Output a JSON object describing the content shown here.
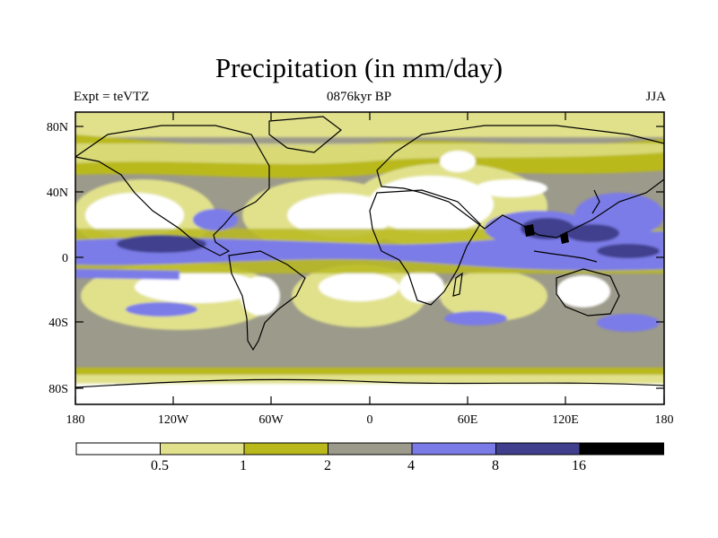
{
  "title": "Precipitation (in mm/day)",
  "subtitle_left": "Expt = teVTZ",
  "subtitle_center": "0876kyr BP",
  "subtitle_right": "JJA",
  "lat_labels": [
    "80N",
    "40N",
    "0",
    "40S",
    "80S"
  ],
  "lon_labels": [
    "180",
    "120W",
    "60W",
    "0",
    "60E",
    "120E",
    "180"
  ],
  "colorbar": {
    "colors": [
      "#ffffff",
      "#e1e18c",
      "#b9b91e",
      "#9c9a8a",
      "#7b7be8",
      "#3f3f8e",
      "#000000"
    ],
    "labels": [
      "0.5",
      "1",
      "2",
      "4",
      "8",
      "16"
    ]
  },
  "legend_levels": {
    "dry": "#ffffff",
    "light": "#e1e18c",
    "olive": "#b9b91e",
    "gray": "#9c9a8a",
    "blue": "#7b7be8",
    "darkblue": "#3f3f8e",
    "black": "#000000"
  }
}
